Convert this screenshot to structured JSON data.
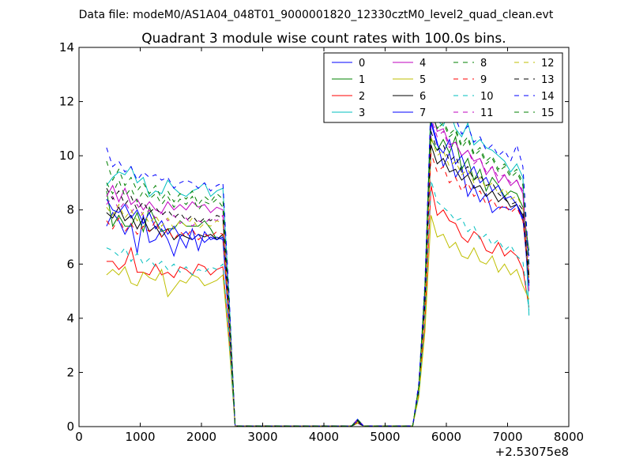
{
  "suptitle": "Data file: modeM0/AS1A04_048T01_9000001820_12330cztM0_level2_quad_clean.evt",
  "chart_data": {
    "type": "line",
    "title": "Quadrant 3 module wise count rates with 100.0s bins.",
    "xlabel": "",
    "ylabel": "",
    "x_offset_label": "+2.53075e8",
    "xlim": [
      0,
      8000
    ],
    "ylim": [
      0,
      14
    ],
    "xticks": [
      0,
      1000,
      2000,
      3000,
      4000,
      5000,
      6000,
      7000,
      8000
    ],
    "yticks": [
      0,
      2,
      4,
      6,
      8,
      10,
      12,
      14
    ],
    "grid": false,
    "legend_position": "top-right",
    "x": [
      450,
      550,
      650,
      750,
      850,
      950,
      1050,
      1150,
      1250,
      1350,
      1450,
      1550,
      1650,
      1750,
      1850,
      1950,
      2050,
      2150,
      2250,
      2350,
      2450,
      2550,
      2650,
      2750,
      2850,
      2950,
      3050,
      3150,
      3250,
      3350,
      3450,
      3550,
      3650,
      3750,
      3850,
      3950,
      4050,
      4150,
      4250,
      4350,
      4450,
      4550,
      4650,
      4750,
      4850,
      4950,
      5050,
      5150,
      5250,
      5350,
      5450,
      5550,
      5650,
      5750,
      5850,
      5950,
      6050,
      6150,
      6250,
      6350,
      6450,
      6550,
      6650,
      6750,
      6850,
      6950,
      7050,
      7150,
      7250,
      7350
    ],
    "series": [
      {
        "name": "0",
        "color": "#0000ff",
        "style": "solid",
        "active_1": [
          7.4,
          7.9,
          7.6,
          7.1,
          7.5,
          6.4,
          7.8,
          6.8,
          6.9,
          7.3,
          6.9,
          6.3,
          7.0,
          6.6,
          7.3,
          6.5,
          7.2,
          6.9,
          7.0,
          6.9
        ],
        "active_2": [
          1.3,
          4.5,
          11.3,
          10.5,
          9.6,
          10.1,
          9.2,
          9.6,
          8.5,
          8.9,
          8.3,
          8.6,
          7.9,
          8.1,
          8.1,
          8.0,
          8.2,
          7.6,
          6.3
        ]
      },
      {
        "name": "1",
        "color": "#008000",
        "style": "solid",
        "active_1": [
          8.7,
          7.4,
          7.8,
          7.4,
          7.4,
          7.9,
          7.2,
          8.1,
          7.6,
          7.2,
          7.3,
          7.3,
          7.6,
          7.4,
          7.4,
          7.4,
          7.6,
          7.3,
          6.9,
          7.0
        ],
        "active_2": [
          1.4,
          4.7,
          10.6,
          10.2,
          10.6,
          10.1,
          10.7,
          9.5,
          9.9,
          9.1,
          9.5,
          8.7,
          9.2,
          8.9,
          8.5,
          8.7,
          8.6,
          8.1,
          6.5
        ]
      },
      {
        "name": "2",
        "color": "#ff0000",
        "style": "solid",
        "active_1": [
          6.1,
          6.1,
          5.8,
          6.0,
          6.6,
          5.7,
          5.7,
          5.6,
          6.0,
          5.6,
          5.7,
          5.5,
          5.9,
          5.8,
          5.6,
          6.0,
          5.9,
          5.6,
          5.8,
          5.9
        ],
        "active_2": [
          1.2,
          3.8,
          8.9,
          7.8,
          8.0,
          7.6,
          7.5,
          7.0,
          6.8,
          7.2,
          7.0,
          6.5,
          6.4,
          6.8,
          6.3,
          6.5,
          6.3,
          5.8,
          4.4
        ]
      },
      {
        "name": "3",
        "color": "#00bfbf",
        "style": "solid",
        "active_1": [
          8.9,
          9.2,
          9.4,
          9.3,
          9.6,
          9.0,
          9.2,
          8.5,
          8.7,
          8.6,
          9.1,
          8.8,
          8.6,
          8.5,
          8.7,
          8.8,
          9.0,
          8.5,
          8.7,
          8.8
        ],
        "active_2": [
          1.5,
          5.0,
          12.1,
          11.3,
          11.1,
          11.7,
          11.0,
          10.7,
          11.2,
          10.4,
          10.6,
          10.3,
          10.2,
          10.0,
          9.8,
          9.4,
          9.7,
          9.2,
          4.1
        ]
      },
      {
        "name": "4",
        "color": "#bf00bf",
        "style": "solid",
        "active_1": [
          8.5,
          8.9,
          8.3,
          8.8,
          8.2,
          8.4,
          8.0,
          8.3,
          8.0,
          7.9,
          8.3,
          8.0,
          8.2,
          8.0,
          8.3,
          8.1,
          8.2,
          7.9,
          8.1,
          8.0
        ],
        "active_2": [
          1.4,
          4.9,
          11.8,
          10.9,
          11.0,
          10.4,
          10.5,
          10.0,
          10.2,
          9.8,
          9.9,
          9.3,
          9.6,
          9.0,
          9.3,
          8.9,
          9.1,
          8.6,
          5.0
        ]
      },
      {
        "name": "5",
        "color": "#bfbf00",
        "style": "solid",
        "active_1": [
          5.6,
          5.8,
          5.6,
          5.9,
          5.3,
          5.2,
          5.7,
          5.5,
          5.4,
          5.8,
          4.8,
          5.1,
          5.4,
          5.3,
          5.6,
          5.5,
          5.2,
          5.3,
          5.4,
          5.6
        ],
        "active_2": [
          1.1,
          3.5,
          7.8,
          7.0,
          7.1,
          6.6,
          6.8,
          6.3,
          6.2,
          6.6,
          6.1,
          6.0,
          6.3,
          5.7,
          6.0,
          5.6,
          5.8,
          5.2,
          4.7
        ]
      },
      {
        "name": "6",
        "color": "#000000",
        "style": "solid",
        "active_1": [
          7.9,
          7.7,
          8.1,
          7.6,
          7.8,
          7.3,
          7.7,
          7.2,
          7.4,
          7.0,
          7.3,
          6.9,
          7.1,
          7.0,
          6.9,
          7.1,
          7.0,
          7.1,
          6.9,
          7.1
        ],
        "active_2": [
          1.3,
          4.6,
          10.4,
          9.7,
          9.9,
          9.4,
          9.5,
          9.1,
          9.3,
          8.8,
          8.9,
          8.5,
          8.7,
          8.3,
          8.5,
          8.1,
          8.2,
          7.8,
          5.6
        ]
      },
      {
        "name": "7",
        "color": "#0000ff",
        "style": "solid",
        "active_1": [
          8.4,
          8.0,
          7.9,
          8.2,
          7.7,
          8.0,
          7.5,
          7.9,
          7.3,
          7.6,
          7.1,
          7.4,
          7.0,
          7.2,
          6.9,
          7.1,
          6.8,
          7.0,
          6.9,
          7.0
        ],
        "active_2": [
          1.4,
          4.8,
          11.2,
          10.4,
          10.1,
          10.6,
          9.7,
          10.0,
          9.3,
          9.6,
          9.0,
          9.2,
          8.7,
          8.9,
          8.4,
          8.5,
          8.2,
          7.7,
          5.2
        ]
      },
      {
        "name": "8",
        "color": "#008000",
        "style": "dashed",
        "active_1": [
          9.0,
          8.6,
          9.1,
          8.5,
          8.8,
          8.3,
          8.7,
          8.4,
          8.6,
          8.2,
          8.5,
          8.1,
          8.4,
          8.2,
          8.5,
          8.0,
          8.3,
          8.2,
          8.4,
          8.1
        ],
        "active_2": [
          1.5,
          5.1,
          11.9,
          11.0,
          11.3,
          10.8,
          11.0,
          10.4,
          10.7,
          10.1,
          10.3,
          9.8,
          10.0,
          9.5,
          9.7,
          9.3,
          9.5,
          9.0,
          5.9
        ]
      },
      {
        "name": "9",
        "color": "#ff0000",
        "style": "dashed",
        "active_1": [
          7.6,
          7.3,
          7.7,
          7.2,
          7.5,
          7.1,
          7.4,
          7.2,
          7.6,
          7.0,
          7.3,
          6.9,
          7.2,
          7.0,
          7.3,
          6.9,
          7.1,
          7.0,
          7.2,
          7.1
        ],
        "active_2": [
          1.3,
          4.4,
          10.1,
          9.4,
          9.6,
          9.0,
          9.2,
          8.7,
          9.0,
          8.5,
          8.7,
          8.2,
          8.4,
          8.0,
          8.2,
          7.9,
          8.1,
          7.6,
          5.5
        ]
      },
      {
        "name": "10",
        "color": "#00bfbf",
        "style": "dashed",
        "active_1": [
          6.6,
          6.5,
          6.3,
          6.6,
          6.1,
          6.4,
          6.0,
          6.2,
          5.9,
          6.1,
          5.8,
          6.0,
          5.7,
          5.9,
          5.6,
          5.8,
          5.7,
          5.9,
          5.8,
          6.0
        ],
        "active_2": [
          1.2,
          4.0,
          9.1,
          8.3,
          8.1,
          7.9,
          7.6,
          7.7,
          7.2,
          7.4,
          6.9,
          7.1,
          6.7,
          6.9,
          6.5,
          6.7,
          6.3,
          6.1,
          4.3
        ]
      },
      {
        "name": "11",
        "color": "#bf00bf",
        "style": "dashed",
        "active_1": [
          8.2,
          8.5,
          8.0,
          8.3,
          7.9,
          8.2,
          7.8,
          8.0,
          7.7,
          7.9,
          7.6,
          7.8,
          7.5,
          7.7,
          7.4,
          7.6,
          7.5,
          7.7,
          7.6,
          7.8
        ],
        "active_2": [
          1.4,
          4.7,
          11.4,
          10.7,
          10.9,
          10.3,
          10.5,
          10.0,
          10.2,
          9.7,
          9.9,
          9.4,
          9.6,
          9.2,
          9.3,
          9.0,
          9.1,
          8.7,
          5.7
        ]
      },
      {
        "name": "12",
        "color": "#bfbf00",
        "style": "dashed",
        "active_1": [
          8.1,
          7.8,
          8.2,
          7.7,
          8.0,
          7.6,
          7.9,
          7.5,
          7.8,
          7.4,
          7.7,
          7.3,
          7.6,
          7.4,
          7.7,
          7.3,
          7.5,
          7.4,
          7.6,
          7.5
        ],
        "active_2": [
          1.3,
          4.5,
          10.7,
          10.0,
          10.2,
          9.6,
          9.8,
          9.3,
          9.5,
          9.0,
          9.2,
          8.8,
          9.0,
          8.6,
          8.8,
          8.4,
          8.5,
          8.1,
          5.4
        ]
      },
      {
        "name": "13",
        "color": "#000000",
        "style": "dashed",
        "active_1": [
          8.8,
          8.4,
          8.7,
          8.2,
          8.5,
          8.0,
          8.3,
          7.9,
          8.1,
          7.8,
          8.0,
          7.7,
          7.9,
          7.6,
          7.8,
          7.5,
          7.7,
          7.6,
          7.8,
          7.7
        ],
        "active_2": [
          1.4,
          4.6,
          10.9,
          10.2,
          10.4,
          9.8,
          10.0,
          9.4,
          9.6,
          9.1,
          9.3,
          8.9,
          9.0,
          8.6,
          8.4,
          8.2,
          8.3,
          8.0,
          5.3
        ]
      },
      {
        "name": "14",
        "color": "#0000ff",
        "style": "dashed",
        "active_1": [
          10.3,
          9.6,
          9.8,
          9.4,
          9.6,
          9.1,
          9.4,
          9.2,
          9.3,
          9.1,
          9.2,
          8.8,
          9.0,
          9.1,
          9.0,
          8.8,
          9.0,
          8.7,
          8.9,
          9.0
        ],
        "active_2": [
          1.6,
          5.3,
          12.2,
          11.5,
          11.8,
          11.2,
          11.4,
          10.8,
          11.1,
          10.5,
          10.7,
          10.2,
          10.4,
          10.0,
          10.2,
          9.8,
          10.4,
          9.6,
          6.0
        ]
      },
      {
        "name": "15",
        "color": "#008000",
        "style": "dashed",
        "active_1": [
          9.8,
          9.1,
          9.5,
          8.9,
          9.2,
          8.7,
          9.0,
          8.6,
          8.9,
          8.4,
          8.7,
          8.3,
          8.6,
          8.4,
          8.7,
          8.2,
          8.5,
          8.3,
          8.6,
          8.4
        ],
        "active_2": [
          1.5,
          5.2,
          11.7,
          11.0,
          11.2,
          10.7,
          10.9,
          10.3,
          10.6,
          10.0,
          10.2,
          9.7,
          9.9,
          9.4,
          9.6,
          9.2,
          9.4,
          8.9,
          5.8
        ]
      }
    ]
  }
}
